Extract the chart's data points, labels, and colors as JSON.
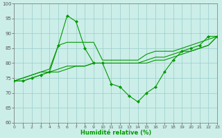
{
  "xlabel": "Humidité relative (%)",
  "xlim": [
    0,
    23
  ],
  "ylim": [
    60,
    100
  ],
  "yticks": [
    60,
    65,
    70,
    75,
    80,
    85,
    90,
    95,
    100
  ],
  "xticks": [
    0,
    1,
    2,
    3,
    4,
    5,
    6,
    7,
    8,
    9,
    10,
    11,
    12,
    13,
    14,
    15,
    16,
    17,
    18,
    19,
    20,
    21,
    22,
    23
  ],
  "bg_color": "#cceee8",
  "grid_color": "#99cccc",
  "line_color": "#009900",
  "curve_x": [
    0,
    1,
    2,
    3,
    4,
    5,
    6,
    7,
    8,
    9,
    10,
    11,
    12,
    13,
    14,
    15,
    16,
    17,
    18,
    19,
    20,
    21,
    22,
    23
  ],
  "curve_y": [
    74,
    74,
    75,
    76,
    77,
    86,
    96,
    94,
    85,
    80,
    80,
    73,
    72,
    69,
    67,
    70,
    72,
    77,
    81,
    84,
    85,
    86,
    89,
    89
  ],
  "line2_x": [
    0,
    1,
    2,
    3,
    4,
    5,
    6,
    7,
    8,
    9,
    10,
    11,
    12,
    13,
    14,
    15,
    16,
    17,
    18,
    19,
    20,
    21,
    22,
    23
  ],
  "line2_y": [
    74,
    75,
    76,
    77,
    78,
    86,
    87,
    87,
    87,
    87,
    81,
    81,
    81,
    81,
    81,
    83,
    84,
    84,
    84,
    85,
    86,
    87,
    88,
    89
  ],
  "line3_x": [
    0,
    1,
    2,
    3,
    4,
    5,
    6,
    7,
    8,
    9,
    10,
    11,
    12,
    13,
    14,
    15,
    16,
    17,
    18,
    19,
    20,
    21,
    22,
    23
  ],
  "line3_y": [
    74,
    75,
    76,
    77,
    77,
    78,
    79,
    79,
    79,
    80,
    80,
    80,
    80,
    80,
    80,
    81,
    82,
    82,
    83,
    84,
    84,
    85,
    86,
    89
  ],
  "line4_x": [
    0,
    1,
    2,
    3,
    4,
    5,
    6,
    7,
    8,
    9,
    10,
    11,
    12,
    13,
    14,
    15,
    16,
    17,
    18,
    19,
    20,
    21,
    22,
    23
  ],
  "line4_y": [
    74,
    74,
    75,
    76,
    77,
    77,
    78,
    79,
    79,
    80,
    80,
    80,
    80,
    80,
    80,
    80,
    81,
    81,
    82,
    83,
    84,
    85,
    86,
    89
  ]
}
